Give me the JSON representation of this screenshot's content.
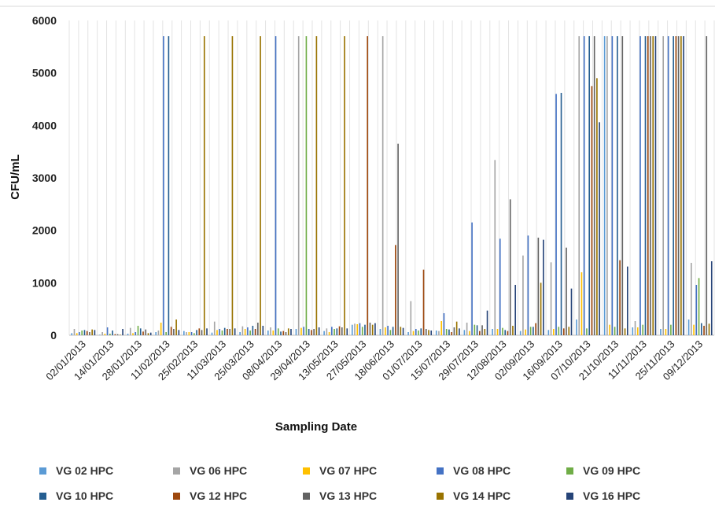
{
  "chart_data": {
    "type": "bar",
    "xlabel": "Sampling Date",
    "ylabel": "CFU/mL",
    "ylim": [
      0,
      6000
    ],
    "yticks": [
      0,
      1000,
      2000,
      3000,
      4000,
      5000,
      6000
    ],
    "grid": "vertical",
    "legend_position": "bottom",
    "categories": [
      "02/01/2013",
      "14/01/2013",
      "28/01/2013",
      "11/02/2013",
      "25/02/2013",
      "11/03/2013",
      "25/03/2013",
      "08/04/2013",
      "29/04/2013",
      "13/05/2013",
      "27/05/2013",
      "18/06/2013",
      "01/07/2013",
      "15/07/2013",
      "29/07/2013",
      "12/08/2013",
      "02/09/2013",
      "16/09/2013",
      "07/10/2013",
      "21/10/2013",
      "11/11/2013",
      "25/11/2013",
      "09/12/2013"
    ],
    "series": [
      {
        "name": "VG 02 HPC",
        "color": "#5b9bd5",
        "values": [
          40,
          10,
          30,
          60,
          80,
          50,
          60,
          90,
          120,
          80,
          200,
          120,
          60,
          90,
          100,
          120,
          80,
          100,
          300,
          5700,
          150,
          120,
          300
        ]
      },
      {
        "name": "VG 06 HPC",
        "color": "#a5a5a5",
        "values": [
          120,
          60,
          140,
          90,
          60,
          260,
          170,
          150,
          5700,
          130,
          220,
          5700,
          650,
          80,
          240,
          3340,
          1520,
          1390,
          5700,
          5700,
          270,
          5700,
          1380
        ]
      },
      {
        "name": "VG 07 HPC",
        "color": "#ffc000",
        "values": [
          40,
          30,
          40,
          240,
          60,
          100,
          120,
          90,
          140,
          60,
          210,
          150,
          80,
          270,
          80,
          120,
          110,
          120,
          1200,
          200,
          150,
          120,
          200
        ]
      },
      {
        "name": "VG 08 HPC",
        "color": "#4472c4",
        "values": [
          60,
          150,
          60,
          5700,
          60,
          120,
          150,
          5700,
          160,
          160,
          230,
          180,
          120,
          420,
          2150,
          1840,
          1900,
          4600,
          5700,
          5700,
          5700,
          5700,
          960
        ]
      },
      {
        "name": "VG 09 HPC",
        "color": "#70ad47",
        "values": [
          90,
          30,
          180,
          60,
          40,
          90,
          90,
          130,
          5700,
          120,
          160,
          100,
          90,
          120,
          200,
          140,
          160,
          160,
          130,
          160,
          200,
          200,
          1090
        ]
      },
      {
        "name": "VG 10 HPC",
        "color": "#255e91",
        "values": [
          100,
          90,
          130,
          5700,
          100,
          140,
          180,
          70,
          120,
          130,
          200,
          160,
          130,
          110,
          190,
          100,
          160,
          4620,
          5700,
          5700,
          5700,
          5700,
          230
        ]
      },
      {
        "name": "VG 12 HPC",
        "color": "#9e480e",
        "values": [
          80,
          20,
          70,
          160,
          130,
          120,
          120,
          80,
          100,
          170,
          5700,
          1720,
          1250,
          60,
          80,
          80,
          230,
          130,
          4750,
          1430,
          5700,
          5700,
          180
        ]
      },
      {
        "name": "VG 13 HPC",
        "color": "#636363",
        "values": [
          60,
          20,
          110,
          120,
          100,
          120,
          240,
          60,
          120,
          150,
          240,
          3650,
          120,
          150,
          190,
          2590,
          1860,
          1670,
          5700,
          5700,
          5700,
          5700,
          5700
        ]
      },
      {
        "name": "VG 14 HPC",
        "color": "#997300",
        "values": [
          110,
          10,
          40,
          300,
          5700,
          5700,
          5700,
          130,
          5700,
          5700,
          200,
          160,
          100,
          260,
          120,
          180,
          1000,
          160,
          4900,
          130,
          5700,
          5700,
          220
        ]
      },
      {
        "name": "VG 16 HPC",
        "color": "#264478",
        "values": [
          100,
          120,
          50,
          100,
          130,
          130,
          180,
          120,
          150,
          130,
          230,
          140,
          90,
          130,
          470,
          960,
          1820,
          890,
          4060,
          1310,
          5700,
          5700,
          1410
        ]
      }
    ]
  }
}
